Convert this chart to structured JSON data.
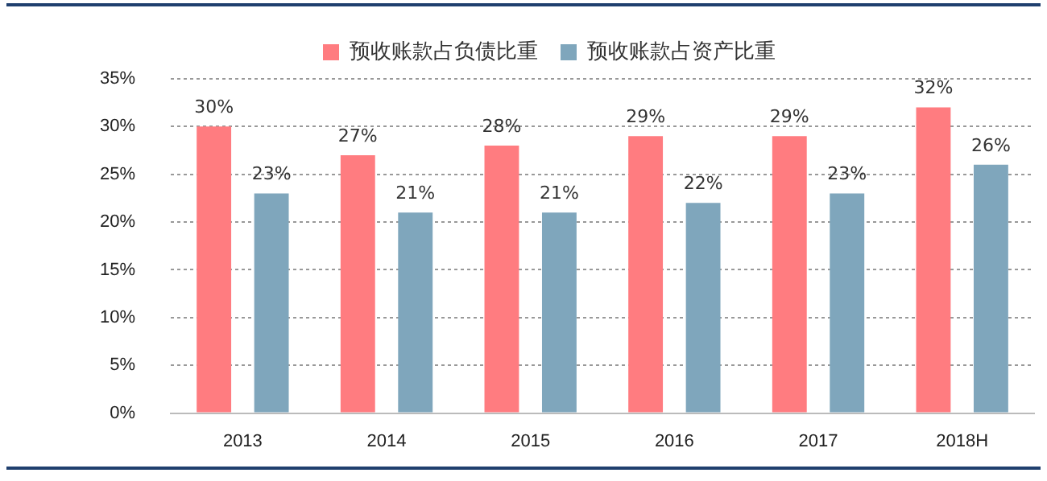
{
  "chart_data": {
    "type": "bar",
    "categories": [
      "2013",
      "2014",
      "2015",
      "2016",
      "2017",
      "2018H"
    ],
    "series": [
      {
        "name": "预收账款占负债比重",
        "color": "#ff7c80",
        "values": [
          30,
          27,
          28,
          29,
          29,
          32
        ],
        "value_labels": [
          "30%",
          "27%",
          "28%",
          "29%",
          "29%",
          "32%"
        ]
      },
      {
        "name": "预收账款占资产比重",
        "color": "#7fa6bc",
        "values": [
          23,
          21,
          21,
          22,
          23,
          26
        ],
        "value_labels": [
          "23%",
          "21%",
          "21%",
          "22%",
          "23%",
          "26%"
        ]
      }
    ],
    "ylim": [
      0,
      35
    ],
    "yticks": [
      {
        "value": 0,
        "label": "0%"
      },
      {
        "value": 5,
        "label": "5%"
      },
      {
        "value": 10,
        "label": "10%"
      },
      {
        "value": 15,
        "label": "15%"
      },
      {
        "value": 20,
        "label": "20%"
      },
      {
        "value": 25,
        "label": "25%"
      },
      {
        "value": 30,
        "label": "30%"
      },
      {
        "value": 35,
        "label": "35%"
      }
    ],
    "grid": "y",
    "legend": "top"
  }
}
